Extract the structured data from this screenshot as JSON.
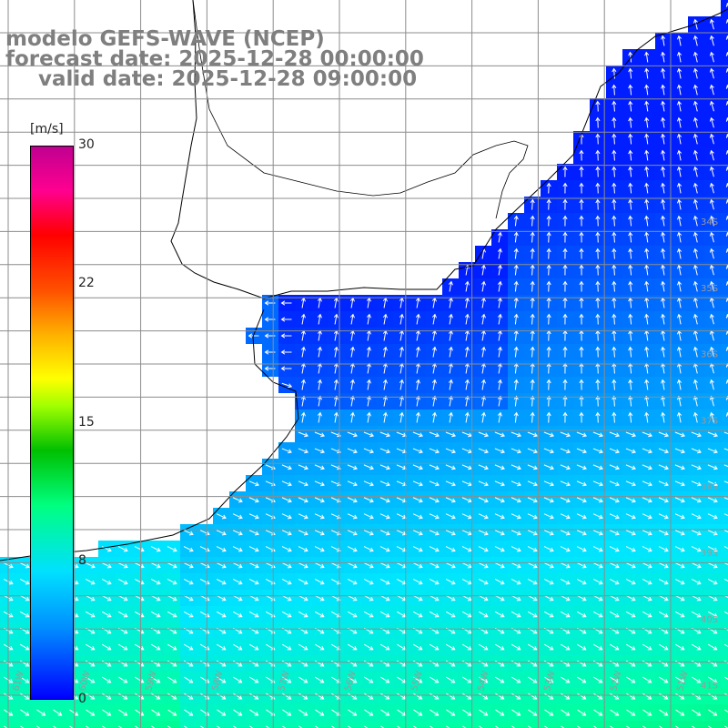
{
  "title": {
    "line1": "modelo GEFS-WAVE (NCEP)",
    "line2": "forecast date: 2025-12-28 00:00:00",
    "line3": "valid date: 2025-12-28 09:00:00"
  },
  "colorbar": {
    "unit": "[m/s]",
    "ticks": [
      "30",
      "22",
      "15",
      "8",
      "0"
    ],
    "min": 0,
    "max": 30
  },
  "map": {
    "grid_lon_labels": [
      "61W",
      "60W",
      "59W",
      "58W",
      "57W",
      "56W",
      "55W",
      "54W",
      "53W",
      "52W",
      "51W"
    ],
    "grid_lat_labels": [
      "34S",
      "35S",
      "36S",
      "37S",
      "38S",
      "39S",
      "40S",
      "41S"
    ],
    "colors": {
      "land": "#ffffff",
      "coast": "#000000",
      "grid": "#8c8c8c",
      "arrow": "#ffffff",
      "grid_label": "#9a9a9a"
    }
  }
}
